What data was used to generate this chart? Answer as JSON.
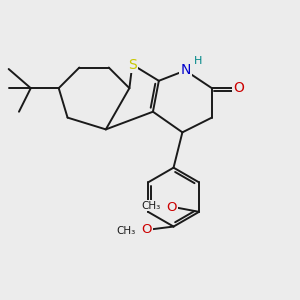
{
  "background_color": "#ececec",
  "bond_color": "#1a1a1a",
  "S_color": "#c8c800",
  "N_color": "#0000cc",
  "O_color": "#cc0000",
  "H_color": "#008888",
  "figsize": [
    3.0,
    3.0
  ],
  "dpi": 100,
  "xlim": [
    0,
    10
  ],
  "ylim": [
    0,
    10
  ],
  "lw": 1.4
}
